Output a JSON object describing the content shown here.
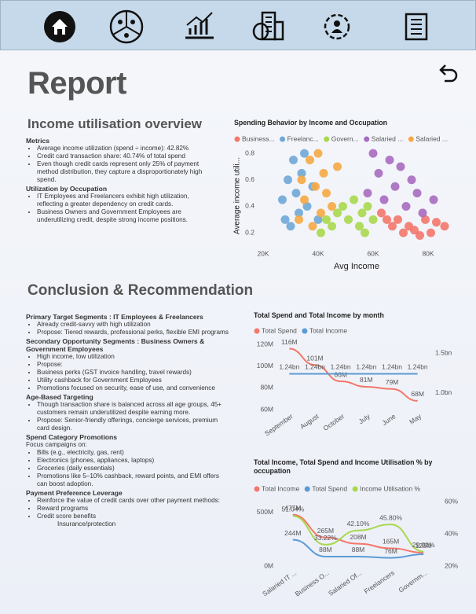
{
  "title": "Report",
  "overview": {
    "heading": "Income utilisation overview",
    "groups": [
      {
        "title": "Metrics",
        "items": [
          "Average income utilization (spend ÷ income): 42.82%",
          "Credit card transaction share: 40.74% of total spend",
          "Even though credit cards represent only 25% of payment method distribution, they capture a disproportionately high spend."
        ]
      },
      {
        "title": "Utilization by Occupation",
        "items": [
          "IT Employees and Freelancers exhibit high utilization, reflecting a greater dependency on credit cards.",
          "Business Owners and Government Employees are underutilizing credit, despite strong income positions."
        ]
      }
    ]
  },
  "conclusion": {
    "heading": "Conclusion & Recommendation",
    "groups": [
      {
        "title": "Primary Target Segments : IT Employees & Freelancers",
        "items": [
          "Already credit-savvy with high utilization",
          "Propose: Tiered rewards, professional perks, flexible EMI programs"
        ]
      },
      {
        "title": "Secondary Opportunity Segments : Business Owners & Government Employees",
        "items": [
          "High income, low utilization",
          "Propose:",
          "Business perks (GST invoice handling, travel rewards)",
          "Utility cashback for Government Employees",
          "Promotions focused on security, ease of use, and convenience"
        ]
      },
      {
        "title": "Age-Based Targeting",
        "items": [
          "Though transaction share is balanced across all age groups, 45+ customers remain underutilized despite earning more.",
          "Propose: Senior-friendly offerings, concierge services, premium card design."
        ]
      },
      {
        "title": "Spend Category Promotions",
        "intro": "Focus campaigns on:",
        "items": [
          "Bills (e.g., electricity, gas, rent)",
          "Electronics (phones, appliances, laptops)",
          "Groceries (daily essentials)",
          "Promotions like 5–10% cashback, reward points, and EMI offers can boost adoption."
        ]
      },
      {
        "title": "Payment Preference Leverage",
        "items": [
          "Reinforce the value of credit cards over other payment methods:",
          "Reward programs",
          "Credit score benefits"
        ],
        "note": "Insurance/protection"
      }
    ]
  },
  "chart_data": [
    {
      "type": "scatter",
      "title": "Spending Behavior by Income and Occupation",
      "x_label": "Avg Income",
      "y_label": "Average income utili...",
      "legend": "top",
      "xlim": [
        18000,
        90000
      ],
      "xticks": [
        {
          "value": 20000,
          "label": "20K"
        },
        {
          "value": 40000,
          "label": "40K"
        },
        {
          "value": 60000,
          "label": "60K"
        },
        {
          "value": 80000,
          "label": "80K"
        }
      ],
      "ylim": [
        0.1,
        0.86
      ],
      "yticks": [
        0.2,
        0.4,
        0.6,
        0.8
      ],
      "series": [
        {
          "name": "Business...",
          "color": "#f4776a",
          "x": [
            63000,
            65000,
            67000,
            69000,
            71000,
            73000,
            75000,
            77000,
            79000,
            81000,
            83000,
            86000
          ],
          "y": [
            0.35,
            0.3,
            0.25,
            0.3,
            0.2,
            0.25,
            0.22,
            0.18,
            0.3,
            0.2,
            0.28,
            0.25
          ]
        },
        {
          "name": "Freelanc...",
          "color": "#6fa8d6",
          "x": [
            27000,
            28000,
            29000,
            30000,
            31000,
            32000,
            33000,
            34000,
            35000,
            36000,
            38000,
            40000
          ],
          "y": [
            0.45,
            0.3,
            0.6,
            0.25,
            0.75,
            0.5,
            0.35,
            0.65,
            0.8,
            0.4,
            0.55,
            0.3
          ]
        },
        {
          "name": "Govern...",
          "color": "#a8d84e",
          "x": [
            41000,
            43000,
            45000,
            47000,
            49000,
            51000,
            53000,
            55000,
            56000,
            57000,
            58000,
            60000
          ],
          "y": [
            0.2,
            0.3,
            0.25,
            0.35,
            0.4,
            0.3,
            0.45,
            0.25,
            0.35,
            0.2,
            0.4,
            0.3
          ]
        },
        {
          "name": "Salaried ...",
          "color": "#a86cbf",
          "x": [
            58000,
            60000,
            62000,
            64000,
            66000,
            68000,
            70000,
            72000,
            74000,
            76000,
            78000,
            82000
          ],
          "y": [
            0.5,
            0.8,
            0.65,
            0.45,
            0.75,
            0.55,
            0.7,
            0.4,
            0.6,
            0.5,
            0.35,
            0.45
          ]
        },
        {
          "name": "Salaried ...",
          "color": "#f6a843",
          "x": [
            33000,
            34000,
            35000,
            37000,
            38000,
            39000,
            40000,
            41000,
            42000,
            43000,
            45000,
            47000
          ],
          "y": [
            0.3,
            0.6,
            0.45,
            0.75,
            0.25,
            0.55,
            0.8,
            0.35,
            0.65,
            0.5,
            0.4,
            0.7
          ]
        }
      ]
    },
    {
      "type": "line",
      "title": "Total Spend and Total Income by month",
      "legend": "top",
      "grid": false,
      "categories": [
        "September",
        "August",
        "October",
        "July",
        "June",
        "May"
      ],
      "ylim": [
        60,
        120
      ],
      "yticks": [
        {
          "value": 60,
          "label": "60M"
        },
        {
          "value": 80,
          "label": "80M"
        },
        {
          "value": 100,
          "label": "100M"
        },
        {
          "value": 120,
          "label": "120M"
        }
      ],
      "y2lim": [
        0.79,
        1.61
      ],
      "y2ticks": [
        {
          "value": 1.0,
          "label": "1.0bn"
        },
        {
          "value": 1.5,
          "label": "1.5bn"
        }
      ],
      "series": [
        {
          "name": "Total Spend",
          "color": "#f4776a",
          "values": [
            116,
            101,
            86,
            81,
            79,
            68
          ],
          "value_labels": [
            "116M",
            "101M",
            "86M",
            "81M",
            "79M",
            "68M"
          ]
        },
        {
          "name": "Total Income",
          "color": "#5b9bd5",
          "axis": "y2",
          "values": [
            1.24,
            1.24,
            1.24,
            1.24,
            1.24,
            1.24
          ],
          "value_labels": [
            "1.24bn",
            "1.24bn",
            "1.24bn",
            "1.24bn",
            "1.24bn",
            "1.24bn"
          ]
        }
      ]
    },
    {
      "type": "line",
      "title": "Total Income, Total Spend and Income Utilisation % by occupation",
      "legend": "top",
      "grid": false,
      "categories": [
        "Salaried IT ...",
        "Business O...",
        "Salaried Of...",
        "Freelancers",
        "Governm..."
      ],
      "ylim": [
        0,
        600
      ],
      "yticks": [
        {
          "value": 0,
          "label": "0M"
        },
        {
          "value": 500,
          "label": "500M"
        }
      ],
      "y2lim": [
        20,
        60
      ],
      "y2ticks": [
        {
          "value": 20,
          "label": "20%"
        },
        {
          "value": 40,
          "label": "40%"
        },
        {
          "value": 60,
          "label": "60%"
        }
      ],
      "series": [
        {
          "name": "Total Income",
          "color": "#f4776a",
          "values": [
            477,
            265,
            208,
            165,
            125
          ],
          "value_labels": [
            "477M",
            "265M",
            "208M",
            "165M",
            "125M"
          ]
        },
        {
          "name": "Total Spend",
          "color": "#5b9bd5",
          "values": [
            244,
            88,
            88,
            76,
            110
          ],
          "value_labels": [
            "244M",
            "88M",
            "88M",
            "76M",
            null
          ]
        },
        {
          "name": "Income Utilisation %",
          "color": "#a8d84e",
          "axis": "y2",
          "values": [
            51.04,
            33.22,
            42.1,
            45.8,
            29.0
          ],
          "value_labels": [
            "51.04%",
            "33.22%",
            "42.10%",
            "45.80%",
            "29.00%"
          ]
        }
      ]
    }
  ]
}
